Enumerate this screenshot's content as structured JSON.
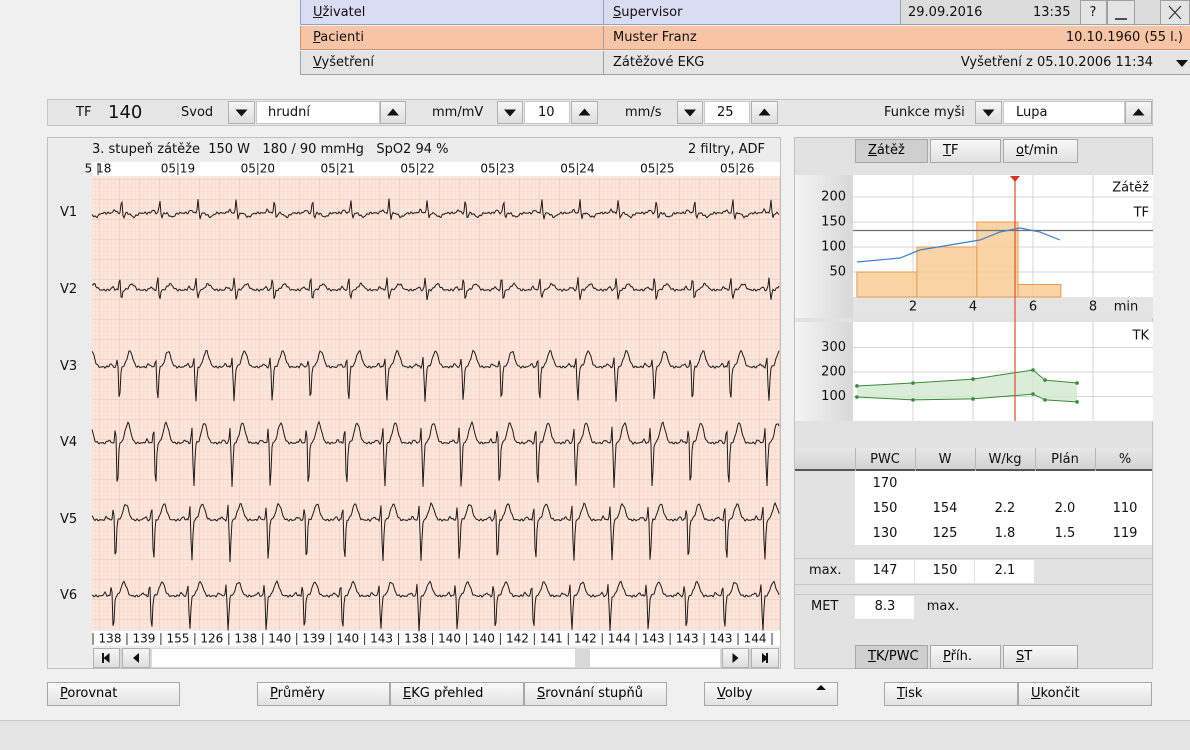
{
  "header": {
    "user_label": "Uživatel",
    "user": "Supervisor",
    "date": "29.09.2016",
    "time": "13:35",
    "help": "?",
    "patient_label": "Pacienti",
    "patient": "Muster Franz",
    "birth": "10.10.1960 (55 l.)",
    "exam_label": "Vyšetření",
    "exam": "Zátěžové EKG",
    "exam_info": "Vyšetření z 05.10.2006 11:34"
  },
  "toolbar": {
    "hr_label": "TF",
    "hr": "140",
    "lead_label": "Svod",
    "lead": "hrudní",
    "gain_label": "mm/mV",
    "gain": "10",
    "speed_label": "mm/s",
    "speed": "25",
    "mouse_label": "Funkce myši",
    "mouse": "Lupa"
  },
  "ecg": {
    "status": "3. stupeň zátěže  150 W   180 / 90 mmHg   SpO2 94 %",
    "filters": "2 filtry, ADF",
    "times": [
      "5 18",
      "05 19",
      "05 20",
      "05 21",
      "05 22",
      "05 23",
      "05 24",
      "05 25",
      "05 26"
    ],
    "leads": [
      "V1",
      "V2",
      "V3",
      "V4",
      "V5",
      "V6"
    ],
    "beat_rates": [
      "138",
      "139",
      "155",
      "126",
      "138",
      "140",
      "139",
      "140",
      "143",
      "138",
      "140",
      "140",
      "142",
      "141",
      "142",
      "144",
      "143",
      "143",
      "143",
      "144"
    ]
  },
  "right": {
    "tabs": [
      "Zátěž",
      "TF",
      "ot/min"
    ],
    "load_chart": {
      "type": "step-line",
      "series_labels": [
        "Zátěž",
        "TF"
      ],
      "xlabel": "min",
      "xlim": [
        0,
        10
      ],
      "xticks": [
        2,
        4,
        6,
        8
      ],
      "ylim": [
        0,
        244
      ],
      "yticks": [
        50,
        100,
        150,
        200
      ],
      "load": [
        {
          "start": 0.13,
          "end": 2.13,
          "value": 50
        },
        {
          "start": 2.13,
          "end": 4.13,
          "value": 100
        },
        {
          "start": 4.13,
          "end": 5.5,
          "value": 150
        },
        {
          "start": 5.5,
          "end": 6.93,
          "value": 25
        }
      ],
      "load_color": "#f7c98e",
      "hr": {
        "x": [
          0.13,
          1.57,
          2.23,
          3.23,
          4.23,
          4.9,
          5.57,
          6.23,
          6.9
        ],
        "y": [
          70,
          78,
          94,
          104,
          114,
          130,
          138,
          130,
          114
        ],
        "color": "#3b7fd0"
      },
      "threshold": 133,
      "marker": 5.4
    },
    "bp_chart": {
      "type": "range-line",
      "label": "TK",
      "xlim": [
        0,
        10
      ],
      "ylim": [
        0,
        400
      ],
      "yticks": [
        100,
        200,
        300
      ],
      "x": [
        0.13,
        2,
        4,
        6,
        6.4,
        7.47
      ],
      "systolic": [
        143,
        155,
        171,
        208,
        167,
        155
      ],
      "diastolic": [
        98,
        86,
        90,
        110,
        86,
        78
      ],
      "color": "#3a8a3a"
    },
    "pwc_table": {
      "headers": [
        "PWC",
        "W",
        "W/kg",
        "Plán",
        "%"
      ],
      "rows": [
        [
          "170"
        ],
        [
          "150",
          "154",
          "2.2",
          "2.0",
          "110"
        ],
        [
          "130",
          "125",
          "1.8",
          "1.5",
          "119"
        ]
      ]
    },
    "max": {
      "label": "max.",
      "values": [
        "147",
        "150",
        "2.1"
      ]
    },
    "met": {
      "label": "MET",
      "value": "8.3",
      "max": "max."
    },
    "bottom_tabs": [
      "TK/PWC",
      "Příh.",
      "ST"
    ]
  },
  "buttons": [
    "Porovnat",
    "Průměry",
    "EKG přehled",
    "Srovnání stupňů",
    "Volby",
    "Tisk",
    "Ukončit"
  ]
}
